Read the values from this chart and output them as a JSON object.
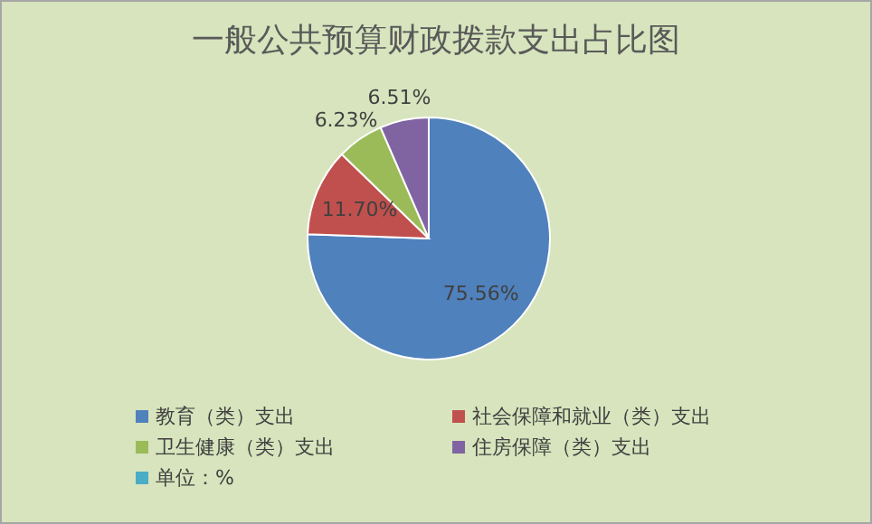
{
  "chart_data": {
    "type": "pie",
    "title": "一般公共预算财政拨款支出占比图",
    "categories": [
      "教育（类）支出",
      "社会保障和就业（类）支出",
      "卫生健康（类）支出",
      "住房保障（类）支出"
    ],
    "values": [
      75.56,
      11.7,
      6.23,
      6.51
    ],
    "colors": [
      "#4f81bd",
      "#c0504d",
      "#9bbb59",
      "#8064a2"
    ],
    "value_labels": [
      "75.56%",
      "11.70%",
      "6.23%",
      "6.51%"
    ],
    "legend": "bottom",
    "annotations": [
      "单位：%"
    ]
  }
}
